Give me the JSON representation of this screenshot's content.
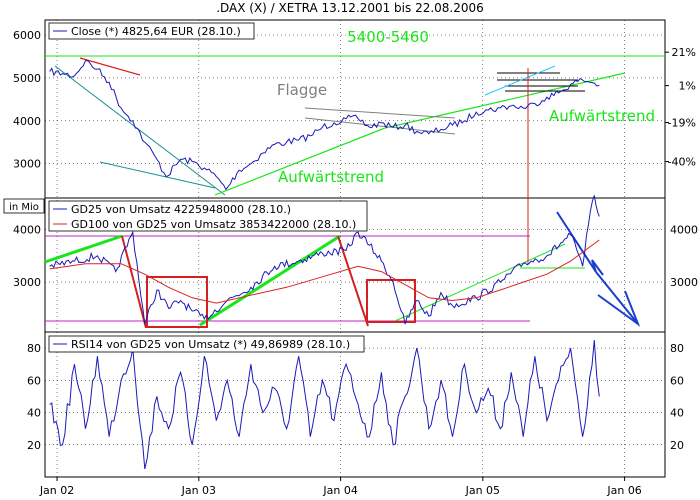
{
  "title": ".DAX (X) / XETRA 13.12.2001 bis 22.08.2006",
  "colors": {
    "series_blue": "#1a1ab8",
    "trend_green": "#19e619",
    "resistance_red": "#d42020",
    "ma_red": "#dd2222",
    "magenta": "#c020c0",
    "gray": "#808080",
    "teal": "#1a8f8f",
    "arrow_blue": "#1a3fd0",
    "grid": "#000000"
  },
  "chart_data": [
    {
      "type": "line",
      "panel": "price",
      "legend": "Close (*) 4825,64 EUR (28.10.)",
      "y_ticks_left": [
        "6000",
        "5000",
        "4000",
        "3000"
      ],
      "y_ticks_right": [
        "21%",
        "1%",
        "-19%",
        "-40%"
      ],
      "ylim": [
        2200,
        6350
      ],
      "annotations": [
        "5400-5460",
        "Flagge",
        "Aufwärtstrend",
        "Aufwärtstrend"
      ],
      "series": [
        {
          "name": "Close",
          "x": [
            "2001-12-13",
            "2002-01-15",
            "2002-02-15",
            "2002-03-15",
            "2002-04-15",
            "2002-05-15",
            "2002-06-15",
            "2002-07-15",
            "2002-08-15",
            "2002-09-15",
            "2002-10-09",
            "2002-11-15",
            "2002-12-15",
            "2003-01-15",
            "2003-02-15",
            "2003-03-12",
            "2003-04-15",
            "2003-05-15",
            "2003-06-15",
            "2003-07-15",
            "2003-08-15",
            "2003-09-15",
            "2003-10-15",
            "2003-11-15",
            "2003-12-15",
            "2004-01-15",
            "2004-02-15",
            "2004-03-15",
            "2004-04-15",
            "2004-05-15",
            "2004-06-15",
            "2004-07-15",
            "2004-08-15",
            "2004-09-15",
            "2004-10-15",
            "2004-11-15",
            "2004-12-15",
            "2005-01-15",
            "2005-02-15",
            "2005-03-15",
            "2005-04-15",
            "2005-05-15",
            "2005-06-15",
            "2005-07-15",
            "2005-08-15",
            "2005-09-15",
            "2005-10-15",
            "2005-10-28"
          ],
          "values": [
            5150,
            5100,
            5050,
            5400,
            5200,
            4900,
            4300,
            4000,
            3500,
            3100,
            2700,
            3100,
            3050,
            2900,
            2700,
            2400,
            2850,
            3000,
            3250,
            3450,
            3500,
            3550,
            3650,
            3850,
            3950,
            4050,
            4050,
            3850,
            3950,
            3850,
            3900,
            3750,
            3700,
            3800,
            3900,
            4000,
            4200,
            4250,
            4300,
            4350,
            4300,
            4400,
            4550,
            4650,
            4850,
            4950,
            4880,
            4825
          ]
        }
      ]
    },
    {
      "type": "line",
      "panel": "volume",
      "axis_label": "in Mio",
      "y_ticks": [
        "4000",
        "3000"
      ],
      "ylim": [
        2050,
        4600
      ],
      "series": [
        {
          "name": "GD25 von Umsatz 4225948000 (28.10.)",
          "x": [
            "2001-12-13",
            "2002-02-15",
            "2002-04-15",
            "2002-06-01",
            "2002-07-15",
            "2002-08-15",
            "2002-09-15",
            "2002-10-15",
            "2002-11-15",
            "2002-12-15",
            "2003-01-15",
            "2003-03-15",
            "2003-05-15",
            "2003-07-15",
            "2003-09-15",
            "2003-11-15",
            "2004-01-15",
            "2004-02-15",
            "2004-03-15",
            "2004-04-15",
            "2004-05-15",
            "2004-06-15",
            "2004-07-15",
            "2004-08-15",
            "2004-09-15",
            "2004-10-15",
            "2004-12-15",
            "2005-02-15",
            "2005-04-15",
            "2005-06-15",
            "2005-08-15",
            "2005-09-15",
            "2005-09-30",
            "2005-10-15",
            "2005-10-28"
          ],
          "values": [
            3300,
            3400,
            3500,
            3200,
            3950,
            2200,
            2850,
            2500,
            2650,
            2450,
            2300,
            2650,
            2900,
            3300,
            3400,
            3550,
            3600,
            3950,
            3700,
            3400,
            3000,
            2200,
            2650,
            2350,
            2800,
            2550,
            2700,
            3000,
            3350,
            3500,
            3900,
            3300,
            4100,
            4650,
            4250
          ]
        },
        {
          "name": "GD100 von GD25 von Umsatz 3853422000 (28.10.)",
          "x": [
            "2001-12-13",
            "2002-03-15",
            "2002-06-15",
            "2002-08-15",
            "2002-10-15",
            "2002-12-15",
            "2003-02-15",
            "2003-05-15",
            "2003-08-15",
            "2003-11-15",
            "2004-02-15",
            "2004-04-15",
            "2004-06-15",
            "2004-08-15",
            "2004-10-15",
            "2004-12-15",
            "2005-02-15",
            "2005-04-15",
            "2005-06-15",
            "2005-08-15",
            "2005-10-28"
          ],
          "values": [
            3250,
            3350,
            3350,
            3150,
            2900,
            2700,
            2600,
            2750,
            2900,
            3100,
            3300,
            3200,
            2950,
            2700,
            2650,
            2700,
            2850,
            3000,
            3150,
            3400,
            3800
          ]
        }
      ]
    },
    {
      "type": "line",
      "panel": "rsi",
      "y_ticks": [
        "80",
        "60",
        "40",
        "20"
      ],
      "ylim": [
        0,
        90
      ],
      "series": [
        {
          "name": "RSI14 von GD25 von Umsatz (*) 49,86989 (28.10.)",
          "x": [
            "2001-12-13",
            "2002-01-15",
            "2002-02-15",
            "2002-03-15",
            "2002-04-15",
            "2002-05-15",
            "2002-06-15",
            "2002-07-15",
            "2002-08-15",
            "2002-09-15",
            "2002-10-15",
            "2002-11-15",
            "2002-12-15",
            "2003-01-15",
            "2003-02-15",
            "2003-03-15",
            "2003-04-15",
            "2003-05-15",
            "2003-06-15",
            "2003-07-15",
            "2003-08-15",
            "2003-09-15",
            "2003-10-15",
            "2003-11-15",
            "2003-12-15",
            "2004-01-15",
            "2004-02-15",
            "2004-03-15",
            "2004-04-15",
            "2004-05-15",
            "2004-06-15",
            "2004-07-15",
            "2004-08-15",
            "2004-09-15",
            "2004-10-15",
            "2004-11-15",
            "2004-12-15",
            "2005-01-15",
            "2005-02-15",
            "2005-03-15",
            "2005-04-15",
            "2005-05-15",
            "2005-06-15",
            "2005-07-15",
            "2005-08-15",
            "2005-09-15",
            "2005-10-15",
            "2005-10-28"
          ],
          "values": [
            45,
            20,
            70,
            30,
            75,
            25,
            60,
            80,
            5,
            50,
            30,
            65,
            20,
            75,
            35,
            60,
            25,
            70,
            40,
            55,
            30,
            75,
            25,
            60,
            35,
            70,
            45,
            25,
            65,
            20,
            50,
            80,
            30,
            60,
            25,
            70,
            40,
            55,
            30,
            65,
            25,
            75,
            35,
            60,
            80,
            25,
            85,
            50
          ]
        }
      ]
    }
  ],
  "x_axis": {
    "ticks": [
      "Jan 02",
      "Jan 03",
      "Jan 04",
      "Jan 05",
      "Jan 06"
    ]
  }
}
